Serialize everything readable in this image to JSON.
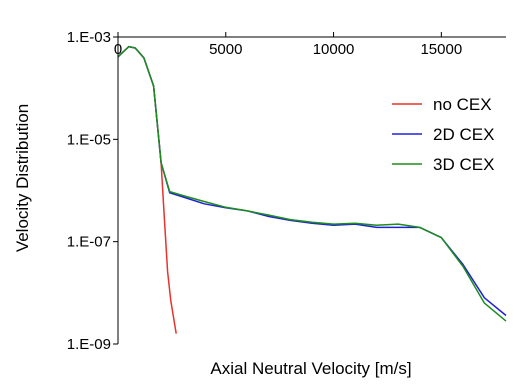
{
  "chart_data": {
    "type": "line",
    "title": "",
    "xlabel": "Axial Neutral Velocity [m/s]",
    "ylabel": "Velocity Distribution",
    "xlim": [
      0,
      18000
    ],
    "ylim": [
      1e-09,
      0.001
    ],
    "y_scale": "log",
    "x_axis_position": "top",
    "grid": false,
    "legend_position": "right",
    "x_ticks": [
      {
        "value": 0,
        "label": "0"
      },
      {
        "value": 5000,
        "label": "5000"
      },
      {
        "value": 10000,
        "label": "10000"
      },
      {
        "value": 15000,
        "label": "15000"
      }
    ],
    "y_ticks": [
      {
        "value": 0.001,
        "label": "1.E-03"
      },
      {
        "value": 1e-05,
        "label": "1.E-05"
      },
      {
        "value": 1e-07,
        "label": "1.E-07"
      },
      {
        "value": 1e-09,
        "label": "1.E-09"
      }
    ],
    "series": [
      {
        "name": "no CEX",
        "color": "#e8322c",
        "points": [
          [
            0,
            0.00041
          ],
          [
            500,
            0.00065
          ],
          [
            800,
            0.00061
          ],
          [
            1200,
            0.00039
          ],
          [
            1650,
            0.00011
          ],
          [
            2000,
            3.5e-06
          ],
          [
            2150,
            3e-07
          ],
          [
            2300,
            2.6e-08
          ],
          [
            2450,
            7e-09
          ],
          [
            2700,
            1.6e-09
          ]
        ]
      },
      {
        "name": "2D CEX",
        "color": "#2020d8",
        "points": [
          [
            0,
            0.00041
          ],
          [
            500,
            0.00065
          ],
          [
            800,
            0.00061
          ],
          [
            1200,
            0.00039
          ],
          [
            1650,
            0.00011
          ],
          [
            2000,
            3.5e-06
          ],
          [
            2400,
            9e-07
          ],
          [
            3000,
            7.5e-07
          ],
          [
            4000,
            5.5e-07
          ],
          [
            5000,
            4.6e-07
          ],
          [
            6000,
            4e-07
          ],
          [
            7000,
            3.1e-07
          ],
          [
            8000,
            2.6e-07
          ],
          [
            9000,
            2.3e-07
          ],
          [
            10000,
            2.1e-07
          ],
          [
            11000,
            2.2e-07
          ],
          [
            12000,
            1.9e-07
          ],
          [
            13000,
            1.9e-07
          ],
          [
            14000,
            1.9e-07
          ],
          [
            15000,
            1.2e-07
          ],
          [
            16000,
            3.6e-08
          ],
          [
            17000,
            8e-09
          ],
          [
            18000,
            3.6e-09
          ]
        ]
      },
      {
        "name": "3D CEX",
        "color": "#1e8c1e",
        "points": [
          [
            0,
            0.00041
          ],
          [
            500,
            0.00065
          ],
          [
            800,
            0.00061
          ],
          [
            1200,
            0.00039
          ],
          [
            1650,
            0.00011
          ],
          [
            2000,
            3.5e-06
          ],
          [
            2400,
            9.5e-07
          ],
          [
            3000,
            8e-07
          ],
          [
            4000,
            6.1e-07
          ],
          [
            5000,
            4.7e-07
          ],
          [
            6000,
            4e-07
          ],
          [
            7000,
            3.3e-07
          ],
          [
            8000,
            2.7e-07
          ],
          [
            9000,
            2.4e-07
          ],
          [
            10000,
            2.2e-07
          ],
          [
            11000,
            2.3e-07
          ],
          [
            12000,
            2.1e-07
          ],
          [
            13000,
            2.2e-07
          ],
          [
            14000,
            1.9e-07
          ],
          [
            15000,
            1.2e-07
          ],
          [
            16000,
            3.3e-08
          ],
          [
            17000,
            6.3e-09
          ],
          [
            18000,
            2.8e-09
          ]
        ]
      }
    ]
  }
}
